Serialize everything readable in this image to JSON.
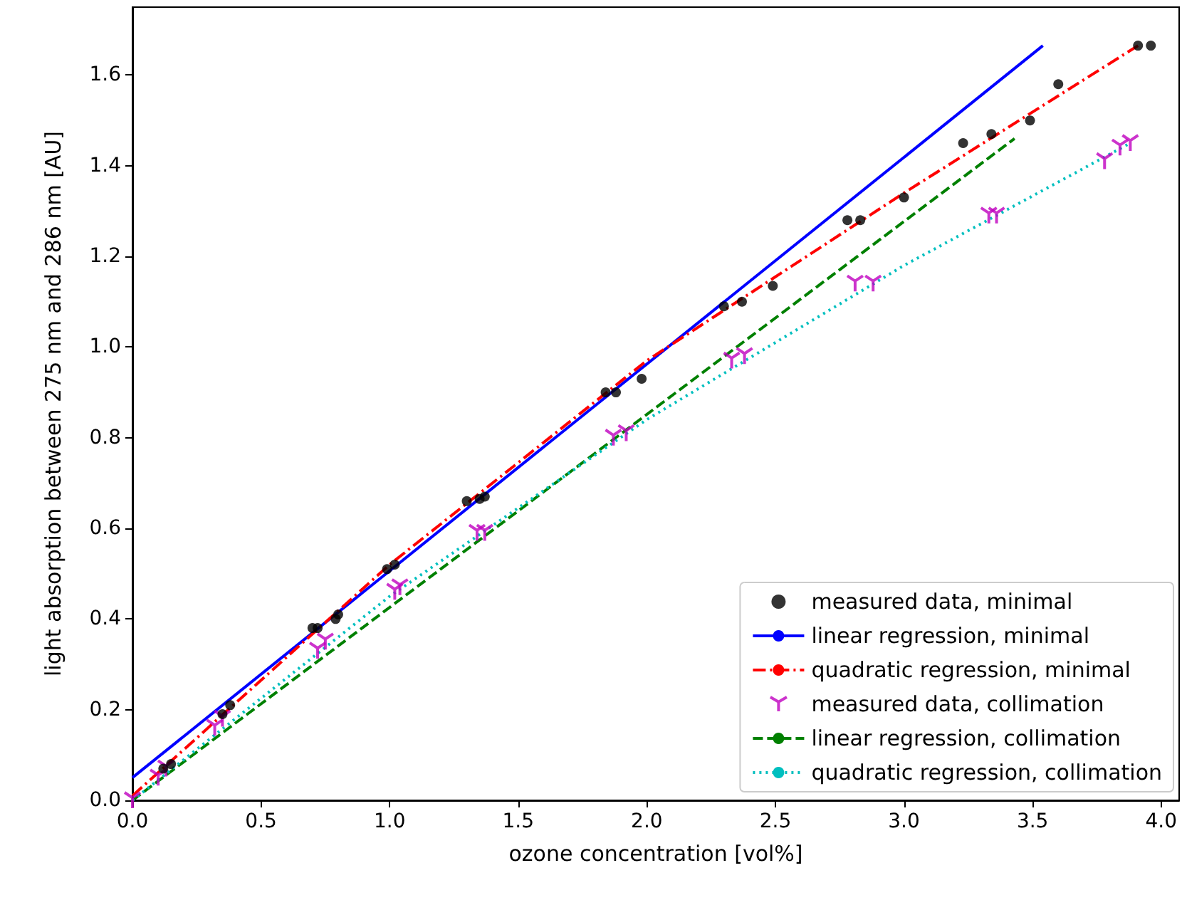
{
  "chart_data": {
    "type": "scatter",
    "xlabel": "ozone concentration [vol%]",
    "ylabel": "light absorption between 275 nm and 286 nm [AU]",
    "xlim": [
      0,
      4.07
    ],
    "ylim": [
      0,
      1.75
    ],
    "xticks": [
      {
        "value": 0,
        "label": "0.0"
      },
      {
        "value": 0.5,
        "label": "0.5"
      },
      {
        "value": 1,
        "label": "1.0"
      },
      {
        "value": 1.5,
        "label": "1.5"
      },
      {
        "value": 2,
        "label": "2.0"
      },
      {
        "value": 2.5,
        "label": "2.5"
      },
      {
        "value": 3,
        "label": "3.0"
      },
      {
        "value": 3.5,
        "label": "3.5"
      },
      {
        "value": 4,
        "label": "4.0"
      }
    ],
    "yticks": [
      {
        "value": 0,
        "label": "0.0"
      },
      {
        "value": 0.2,
        "label": "0.2"
      },
      {
        "value": 0.4,
        "label": "0.4"
      },
      {
        "value": 0.6,
        "label": "0.6"
      },
      {
        "value": 0.8,
        "label": "0.8"
      },
      {
        "value": 1,
        "label": "1.0"
      },
      {
        "value": 1.2,
        "label": "1.2"
      },
      {
        "value": 1.4,
        "label": "1.4"
      },
      {
        "value": 1.6,
        "label": "1.6"
      }
    ],
    "grid": false,
    "legend": "bottom right",
    "series": [
      {
        "name": "measured data, minimal",
        "marker": "circle",
        "color": "#000000",
        "x": [
          0.12,
          0.15,
          0.35,
          0.38,
          0.7,
          0.72,
          0.79,
          0.8,
          0.99,
          1.02,
          1.3,
          1.35,
          1.37,
          1.84,
          1.88,
          1.98,
          2.3,
          2.37,
          2.49,
          2.78,
          2.83,
          3.0,
          3.23,
          3.34,
          3.49,
          3.6,
          3.91,
          3.96
        ],
        "values": [
          0.07,
          0.08,
          0.19,
          0.21,
          0.38,
          0.38,
          0.4,
          0.41,
          0.51,
          0.52,
          0.66,
          0.665,
          0.67,
          0.9,
          0.9,
          0.93,
          1.09,
          1.1,
          1.135,
          1.28,
          1.28,
          1.33,
          1.45,
          1.47,
          1.5,
          1.58,
          1.665,
          1.665
        ]
      },
      {
        "name": "linear regression, minimal",
        "type": "line",
        "marker": "none",
        "line_style": "solid",
        "color": "#0000ff",
        "x": [
          0,
          3.54
        ],
        "values": [
          0.05,
          1.665
        ]
      },
      {
        "name": "quadratic regression, minimal",
        "type": "line",
        "marker": "none",
        "line_style": "dashdot",
        "color": "#ff0000",
        "x": [
          0,
          1,
          2,
          3,
          3.91
        ],
        "values": [
          0.01,
          0.52,
          0.97,
          1.34,
          1.665
        ]
      },
      {
        "name": "measured data, collimation",
        "marker": "cross",
        "color": "#bf00bf",
        "x": [
          0.0,
          0.1,
          0.13,
          0.32,
          0.35,
          0.72,
          0.75,
          1.02,
          1.04,
          1.34,
          1.37,
          1.87,
          1.92,
          2.33,
          2.38,
          2.81,
          2.88,
          3.33,
          3.36,
          3.78,
          3.84,
          3.88
        ],
        "values": [
          0.0,
          0.05,
          0.07,
          0.16,
          0.18,
          0.33,
          0.35,
          0.46,
          0.47,
          0.59,
          0.59,
          0.8,
          0.81,
          0.97,
          0.98,
          1.14,
          1.14,
          1.29,
          1.29,
          1.41,
          1.44,
          1.45
        ]
      },
      {
        "name": "linear regression, collimation",
        "type": "line",
        "marker": "none",
        "line_style": "dashed",
        "color": "#008000",
        "x": [
          0,
          3.43
        ],
        "values": [
          0.0,
          1.46
        ]
      },
      {
        "name": "quadratic regression, collimation",
        "type": "line",
        "marker": "none",
        "line_style": "dotted",
        "color": "#00bfbf",
        "x": [
          0,
          1,
          2,
          3,
          3.88
        ],
        "values": [
          0.0,
          0.45,
          0.84,
          1.18,
          1.45
        ]
      }
    ]
  }
}
